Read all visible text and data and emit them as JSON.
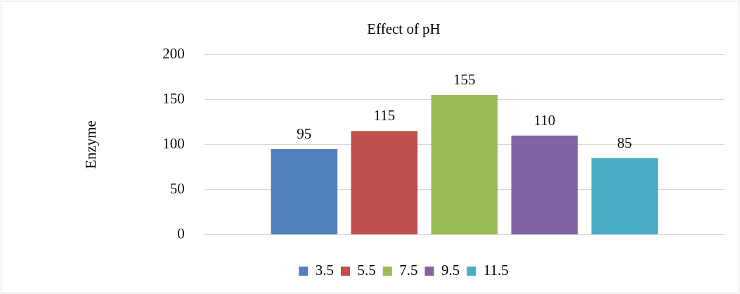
{
  "chart_data": {
    "type": "bar",
    "title": "Effect of pH",
    "ylabel": "Enzyme",
    "categories": [
      null
    ],
    "series": [
      {
        "name": "3.5",
        "color": "#4f81bd",
        "values": [
          95
        ]
      },
      {
        "name": "5.5",
        "color": "#c0504d",
        "values": [
          115
        ]
      },
      {
        "name": "7.5",
        "color": "#9bbb59",
        "values": [
          155
        ]
      },
      {
        "name": "9.5",
        "color": "#8064a2",
        "values": [
          110
        ]
      },
      {
        "name": "11.5",
        "color": "#4bacc6",
        "values": [
          85
        ]
      }
    ],
    "ylim": [
      0,
      200
    ],
    "yticks": [
      0,
      50,
      100,
      150,
      200
    ],
    "grid": "y",
    "legend": "bottom",
    "data_labels": true
  }
}
